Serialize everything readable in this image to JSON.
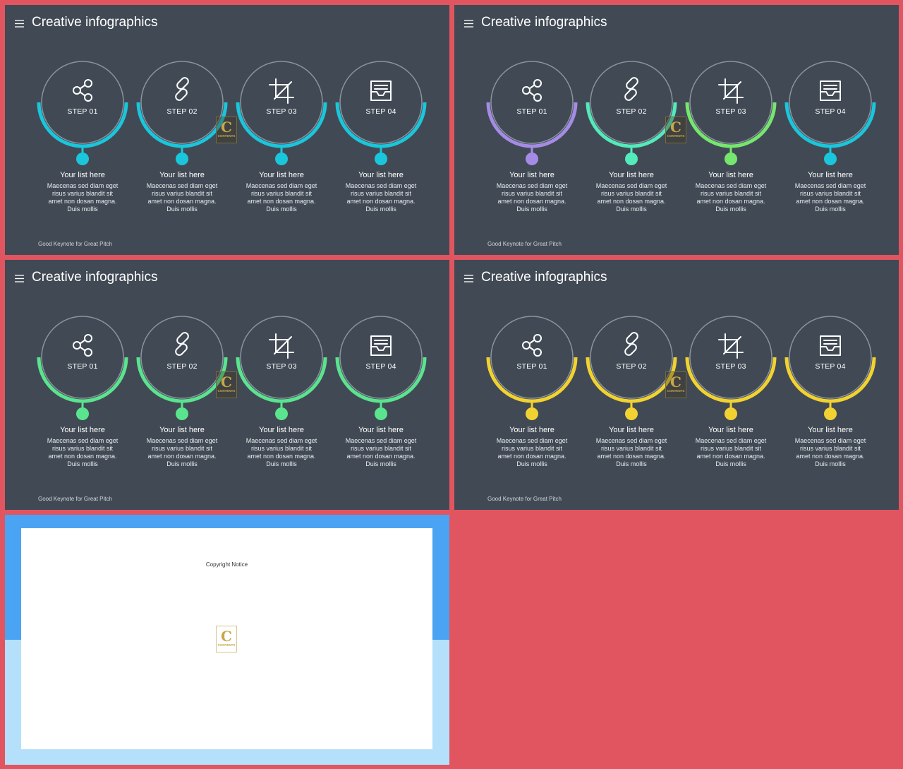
{
  "slides": [
    {
      "title": "Creative infographics",
      "footer": "Good Keynote for Great Pitch",
      "colors": [
        "#1ac6dc",
        "#1ac6dc",
        "#1ac6dc",
        "#1ac6dc"
      ],
      "steps": [
        {
          "icon": "share-icon",
          "label": "STEP 01",
          "heading": "Your list here",
          "desc": [
            "Maecenas sed diam eget",
            "risus varius blandit sit",
            "amet non dosan magna.",
            "Duis mollis"
          ]
        },
        {
          "icon": "link-icon",
          "label": "STEP 02",
          "heading": "Your list here",
          "desc": [
            "Maecenas sed diam eget",
            "risus varius blandit sit",
            "amet non dosan magna.",
            "Duis mollis"
          ]
        },
        {
          "icon": "crop-icon",
          "label": "STEP 03",
          "heading": "Your list here",
          "desc": [
            "Maecenas sed diam eget",
            "risus varius blandit sit",
            "amet non dosan magna.",
            "Duis mollis"
          ]
        },
        {
          "icon": "inbox-icon",
          "label": "STEP 04",
          "heading": "Your list here",
          "desc": [
            "Maecenas sed diam eget",
            "risus varius blandit sit",
            "amet non dosan magna.",
            "Duis mollis"
          ]
        }
      ]
    },
    {
      "title": "Creative infographics",
      "footer": "Good Keynote for Great Pitch",
      "colors": [
        "#a58be6",
        "#54eabb",
        "#76e66e",
        "#1ac6dc"
      ],
      "steps": [
        {
          "icon": "share-icon",
          "label": "STEP 01",
          "heading": "Your list here",
          "desc": [
            "Maecenas sed diam eget",
            "risus varius blandit sit",
            "amet non dosan magna.",
            "Duis mollis"
          ]
        },
        {
          "icon": "link-icon",
          "label": "STEP 02",
          "heading": "Your list here",
          "desc": [
            "Maecenas sed diam eget",
            "risus varius blandit sit",
            "amet non dosan magna.",
            "Duis mollis"
          ]
        },
        {
          "icon": "crop-icon",
          "label": "STEP 03",
          "heading": "Your list here",
          "desc": [
            "Maecenas sed diam eget",
            "risus varius blandit sit",
            "amet non dosan magna.",
            "Duis mollis"
          ]
        },
        {
          "icon": "inbox-icon",
          "label": "STEP 04",
          "heading": "Your list here",
          "desc": [
            "Maecenas sed diam eget",
            "risus varius blandit sit",
            "amet non dosan magna.",
            "Duis mollis"
          ]
        }
      ]
    },
    {
      "title": "Creative infographics",
      "footer": "Good Keynote for Great Pitch",
      "colors": [
        "#5ae48e",
        "#5ae48e",
        "#5ae48e",
        "#5ae48e"
      ],
      "steps": [
        {
          "icon": "share-icon",
          "label": "STEP 01",
          "heading": "Your list here",
          "desc": [
            "Maecenas sed diam eget",
            "risus varius blandit sit",
            "amet non dosan magna.",
            "Duis mollis"
          ]
        },
        {
          "icon": "link-icon",
          "label": "STEP 02",
          "heading": "Your list here",
          "desc": [
            "Maecenas sed diam eget",
            "risus varius blandit sit",
            "amet non dosan magna.",
            "Duis mollis"
          ]
        },
        {
          "icon": "crop-icon",
          "label": "STEP 03",
          "heading": "Your list here",
          "desc": [
            "Maecenas sed diam eget",
            "risus varius blandit sit",
            "amet non dosan magna.",
            "Duis mollis"
          ]
        },
        {
          "icon": "inbox-icon",
          "label": "STEP 04",
          "heading": "Your list here",
          "desc": [
            "Maecenas sed diam eget",
            "risus varius blandit sit",
            "amet non dosan magna.",
            "Duis mollis"
          ]
        }
      ]
    },
    {
      "title": "Creative infographics",
      "footer": "Good Keynote for Great Pitch",
      "colors": [
        "#f2d231",
        "#f2d231",
        "#f2d231",
        "#f2d231"
      ],
      "steps": [
        {
          "icon": "share-icon",
          "label": "STEP 01",
          "heading": "Your list here",
          "desc": [
            "Maecenas sed diam eget",
            "risus varius blandit sit",
            "amet non dosan magna.",
            "Duis mollis"
          ]
        },
        {
          "icon": "link-icon",
          "label": "STEP 02",
          "heading": "Your list here",
          "desc": [
            "Maecenas sed diam eget",
            "risus varius blandit sit",
            "amet non dosan magna.",
            "Duis mollis"
          ]
        },
        {
          "icon": "crop-icon",
          "label": "STEP 03",
          "heading": "Your list here",
          "desc": [
            "Maecenas sed diam eget",
            "risus varius blandit sit",
            "amet non dosan magna.",
            "Duis mollis"
          ]
        },
        {
          "icon": "inbox-icon",
          "label": "STEP 04",
          "heading": "Your list here",
          "desc": [
            "Maecenas sed diam eget",
            "risus varius blandit sit",
            "amet non dosan magna.",
            "Duis mollis"
          ]
        }
      ]
    }
  ],
  "copyright": {
    "text": "Copyright Notice",
    "logo_letter": "C",
    "logo_sub": "CONTENTS"
  },
  "logo": {
    "letter": "C",
    "sub": "CONTENTS"
  },
  "colors": {
    "page_background": "#e05560",
    "slide_background": "#414a54",
    "ring_outline": "#8a949e",
    "copyright_top": "#4aa3f3",
    "copyright_bottom": "#b4e0fb"
  }
}
